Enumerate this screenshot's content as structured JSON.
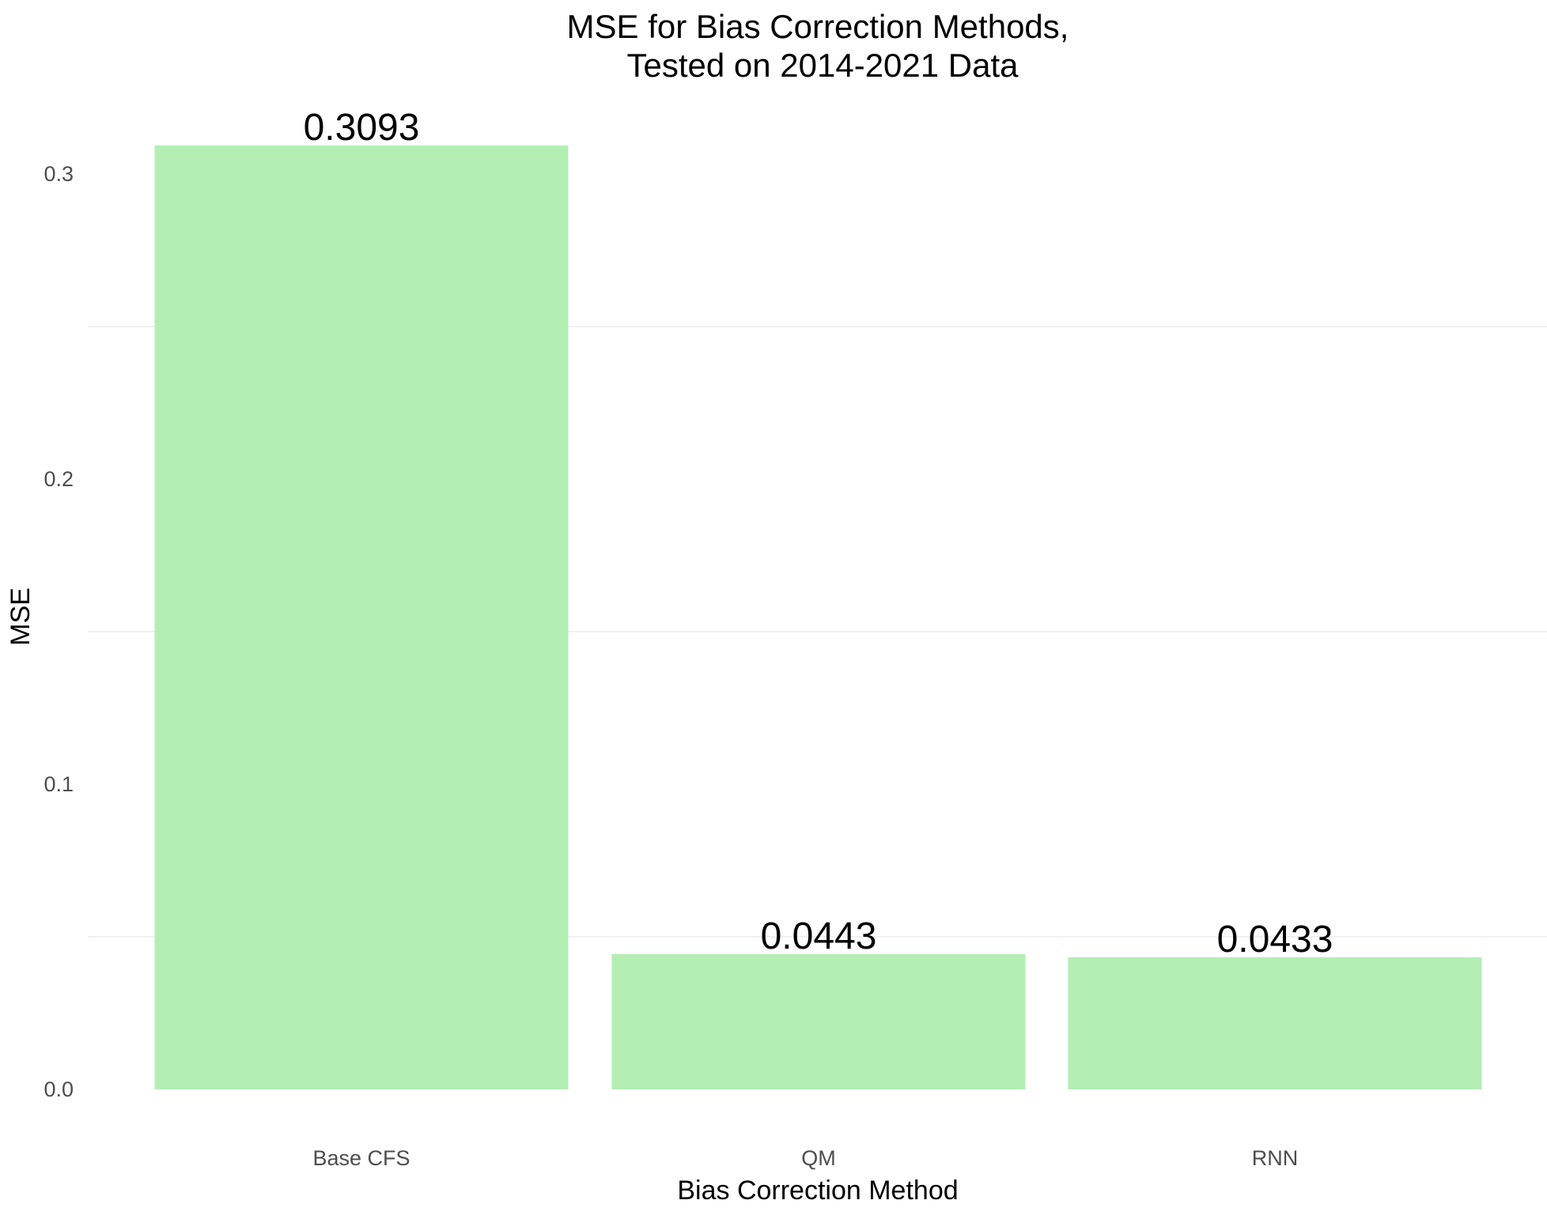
{
  "chart_data": {
    "type": "bar",
    "title": [
      "MSE for Bias Correction Methods,",
      "Tested on 2014-2021 Data"
    ],
    "xlabel": "Bias Correction Method",
    "ylabel": "MSE",
    "categories": [
      "Base CFS",
      "QM",
      "RNN"
    ],
    "values": [
      0.3093,
      0.0443,
      0.0433
    ],
    "data_labels": [
      "0.3093",
      "0.0443",
      "0.0433"
    ],
    "ylim": [
      0,
      0.3093
    ],
    "y_ticks": [
      0.0,
      0.1,
      0.2,
      0.3
    ],
    "y_tick_labels": [
      "0.0",
      "0.1",
      "0.2",
      "0.3"
    ],
    "y_minor_gridlines": [
      0.05,
      0.15,
      0.25
    ],
    "grid": true,
    "legend": "none",
    "colors": {
      "bar": "#b3eeb3",
      "grid": "#ebebeb",
      "tick_text": "#4d4d4d",
      "text": "#000000"
    }
  }
}
